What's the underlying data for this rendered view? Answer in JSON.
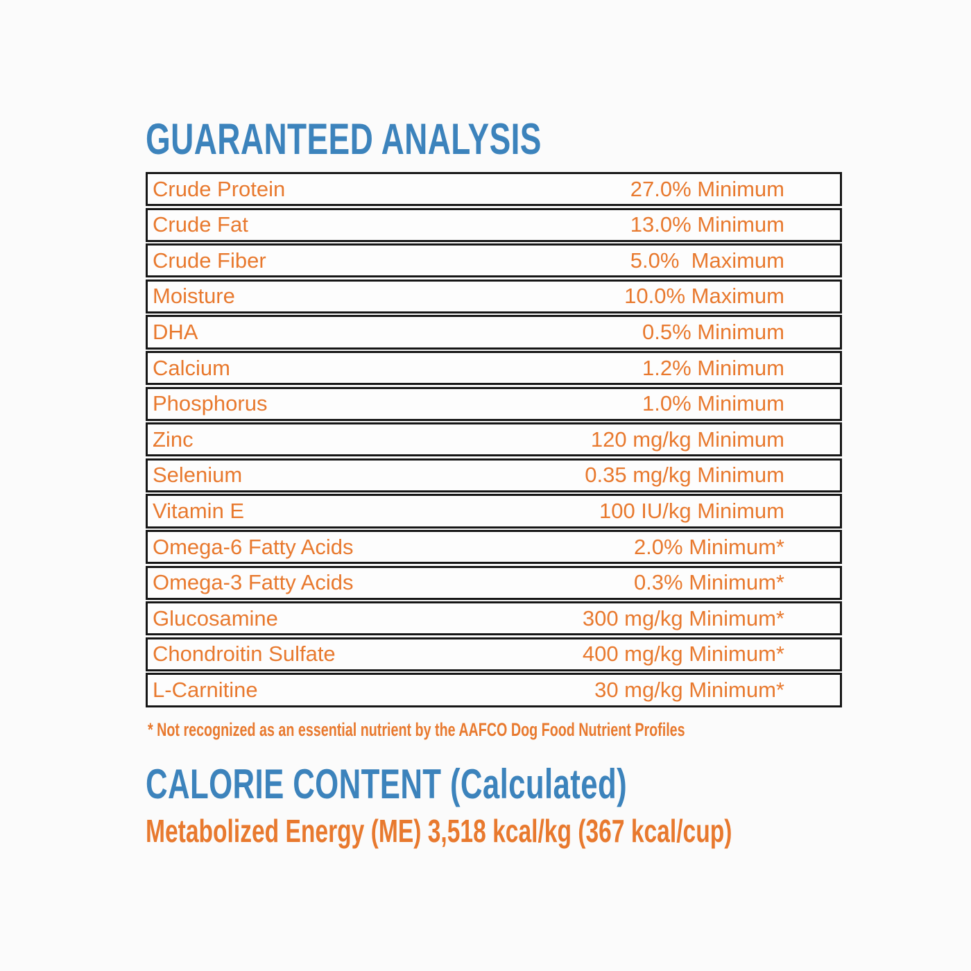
{
  "page": {
    "background": "#fbfbfb",
    "colors": {
      "orange": "#E8792E",
      "blue": "#3C83BC",
      "table_border": "#161616"
    }
  },
  "guaranteed_analysis": {
    "title": "GUARANTEED ANALYSIS",
    "rows": [
      {
        "nutrient": "Crude Protein",
        "value": "27.0% Minimum"
      },
      {
        "nutrient": "Crude Fat",
        "value": "13.0% Minimum"
      },
      {
        "nutrient": "Crude Fiber",
        "value": "5.0%  Maximum"
      },
      {
        "nutrient": "Moisture",
        "value": "10.0% Maximum"
      },
      {
        "nutrient": "DHA",
        "value": "0.5% Minimum"
      },
      {
        "nutrient": "Calcium",
        "value": "1.2% Minimum"
      },
      {
        "nutrient": "Phosphorus",
        "value": "1.0% Minimum"
      },
      {
        "nutrient": "Zinc",
        "value": "120 mg/kg Minimum"
      },
      {
        "nutrient": "Selenium",
        "value": "0.35 mg/kg Minimum"
      },
      {
        "nutrient": "Vitamin E",
        "value": "100 IU/kg Minimum"
      },
      {
        "nutrient": "Omega-6 Fatty Acids",
        "value": "2.0% Minimum*"
      },
      {
        "nutrient": "Omega-3 Fatty Acids",
        "value": "0.3% Minimum*"
      },
      {
        "nutrient": "Glucosamine",
        "value": "300 mg/kg Minimum*"
      },
      {
        "nutrient": "Chondroitin Sulfate",
        "value": "400 mg/kg Minimum*"
      },
      {
        "nutrient": "L-Carnitine",
        "value": "30 mg/kg Minimum*"
      }
    ],
    "footnote": "* Not recognized as an essential nutrient by the AAFCO Dog Food Nutrient Profiles"
  },
  "calorie_content": {
    "title": "CALORIE CONTENT (Calculated)",
    "metabolized_energy": "Metabolized Energy (ME) 3,518 kcal/kg (367 kcal/cup)"
  }
}
